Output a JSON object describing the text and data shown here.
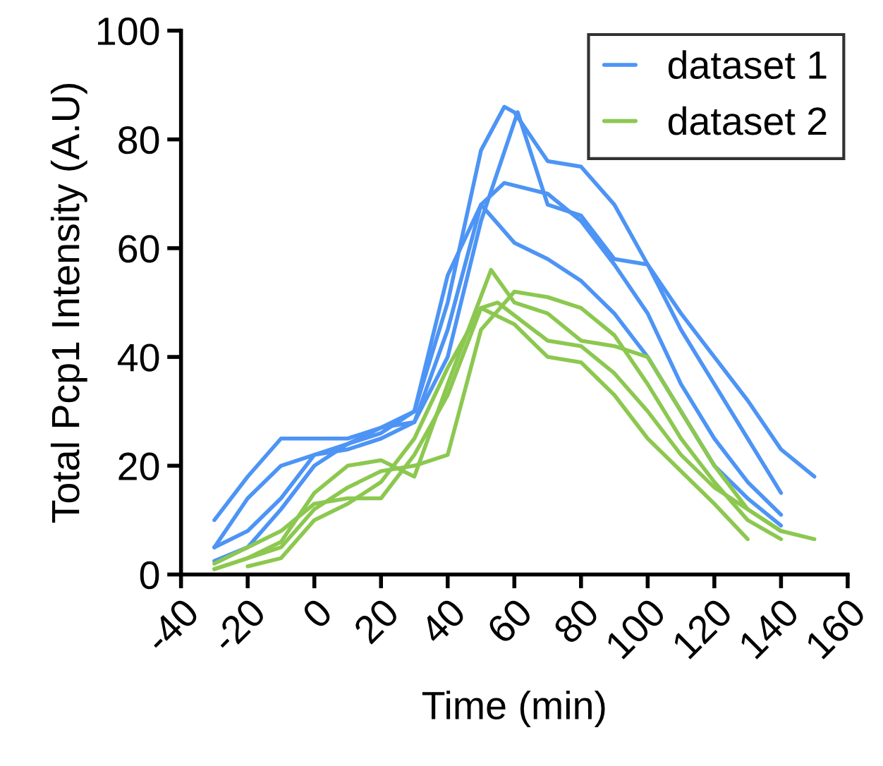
{
  "chart_data": {
    "type": "line",
    "xlabel": "Time (min)",
    "ylabel": "Total Pcp1 Intensity (A.U)",
    "xlim": [
      -40,
      160
    ],
    "ylim": [
      0,
      100
    ],
    "xticks": [
      -40,
      -20,
      0,
      20,
      40,
      60,
      80,
      100,
      120,
      140,
      160
    ],
    "yticks": [
      0,
      20,
      40,
      60,
      80,
      100
    ],
    "grid": false,
    "legend": "top right",
    "marker": "none",
    "line_style": "solid",
    "series": [
      {
        "name": "dataset 1",
        "color": "#4d94f5",
        "x": [
          -30,
          -20,
          -10,
          0,
          10,
          20,
          30,
          40,
          50,
          57,
          60,
          70,
          80,
          90,
          100,
          110,
          120,
          130,
          140
        ],
        "values": [
          5,
          8,
          14,
          22,
          24,
          26,
          30,
          50,
          78,
          86,
          85,
          76,
          75,
          68,
          57,
          45,
          35,
          25,
          15
        ]
      },
      {
        "color": "#4d94f5",
        "x": [
          -30,
          -20,
          -10,
          0,
          10,
          20,
          30,
          40,
          50,
          61,
          70,
          80,
          90,
          100,
          110,
          120,
          130,
          140,
          150
        ],
        "values": [
          2.5,
          5,
          12,
          20,
          24,
          27,
          28,
          40,
          65,
          85,
          68,
          66,
          58,
          57,
          48,
          40,
          32,
          23,
          18
        ]
      },
      {
        "color": "#4d94f5",
        "x": [
          -30,
          -20,
          -10,
          0,
          10,
          20,
          30,
          40,
          50,
          57,
          70,
          80,
          90,
          100,
          110,
          120,
          130,
          140
        ],
        "values": [
          5,
          14,
          20,
          22,
          23,
          25,
          28,
          45,
          68,
          72,
          70,
          65,
          57,
          48,
          35,
          25,
          17,
          11
        ]
      },
      {
        "color": "#4d94f5",
        "x": [
          -30,
          -20,
          -10,
          0,
          10,
          20,
          30,
          40,
          50,
          60,
          70,
          80,
          90,
          100,
          110,
          120,
          130,
          140
        ],
        "values": [
          10,
          18,
          25,
          25,
          25,
          27,
          30,
          55,
          68,
          61,
          58,
          54,
          48,
          40,
          30,
          20,
          14,
          9
        ]
      },
      {
        "name": "dataset 2",
        "color": "#8cc850",
        "x": [
          -30,
          -20,
          -10,
          0,
          10,
          20,
          30,
          40,
          53,
          60,
          70,
          80,
          90,
          100,
          110,
          120,
          130,
          140,
          150
        ],
        "values": [
          1,
          3,
          6,
          15,
          20,
          21,
          18,
          35,
          56,
          50,
          48,
          43,
          42,
          40,
          30,
          20,
          12,
          8,
          6.5
        ]
      },
      {
        "color": "#8cc850",
        "x": [
          -30,
          -20,
          -10,
          0,
          10,
          20,
          30,
          40,
          50,
          60,
          70,
          80,
          90,
          100,
          110,
          120,
          130,
          140
        ],
        "values": [
          1,
          3,
          5,
          12,
          16,
          19,
          20,
          22,
          45,
          52,
          51,
          49,
          44,
          35,
          25,
          17,
          10,
          6.5
        ]
      },
      {
        "color": "#8cc850",
        "x": [
          -30,
          -20,
          -10,
          0,
          10,
          20,
          30,
          40,
          50,
          55,
          70,
          80,
          90,
          100,
          110,
          120,
          130,
          140
        ],
        "values": [
          2,
          5,
          8,
          13,
          14,
          14,
          22,
          33,
          49,
          50,
          43,
          42,
          37,
          30,
          22,
          16,
          12,
          8
        ]
      },
      {
        "color": "#8cc850",
        "x": [
          -20,
          -10,
          0,
          10,
          20,
          30,
          40,
          50,
          60,
          70,
          80,
          90,
          100,
          110,
          120,
          130
        ],
        "values": [
          1.5,
          3,
          10,
          13,
          17,
          25,
          38,
          49,
          46,
          40,
          39,
          33,
          25,
          19,
          13,
          6.5
        ]
      }
    ]
  }
}
